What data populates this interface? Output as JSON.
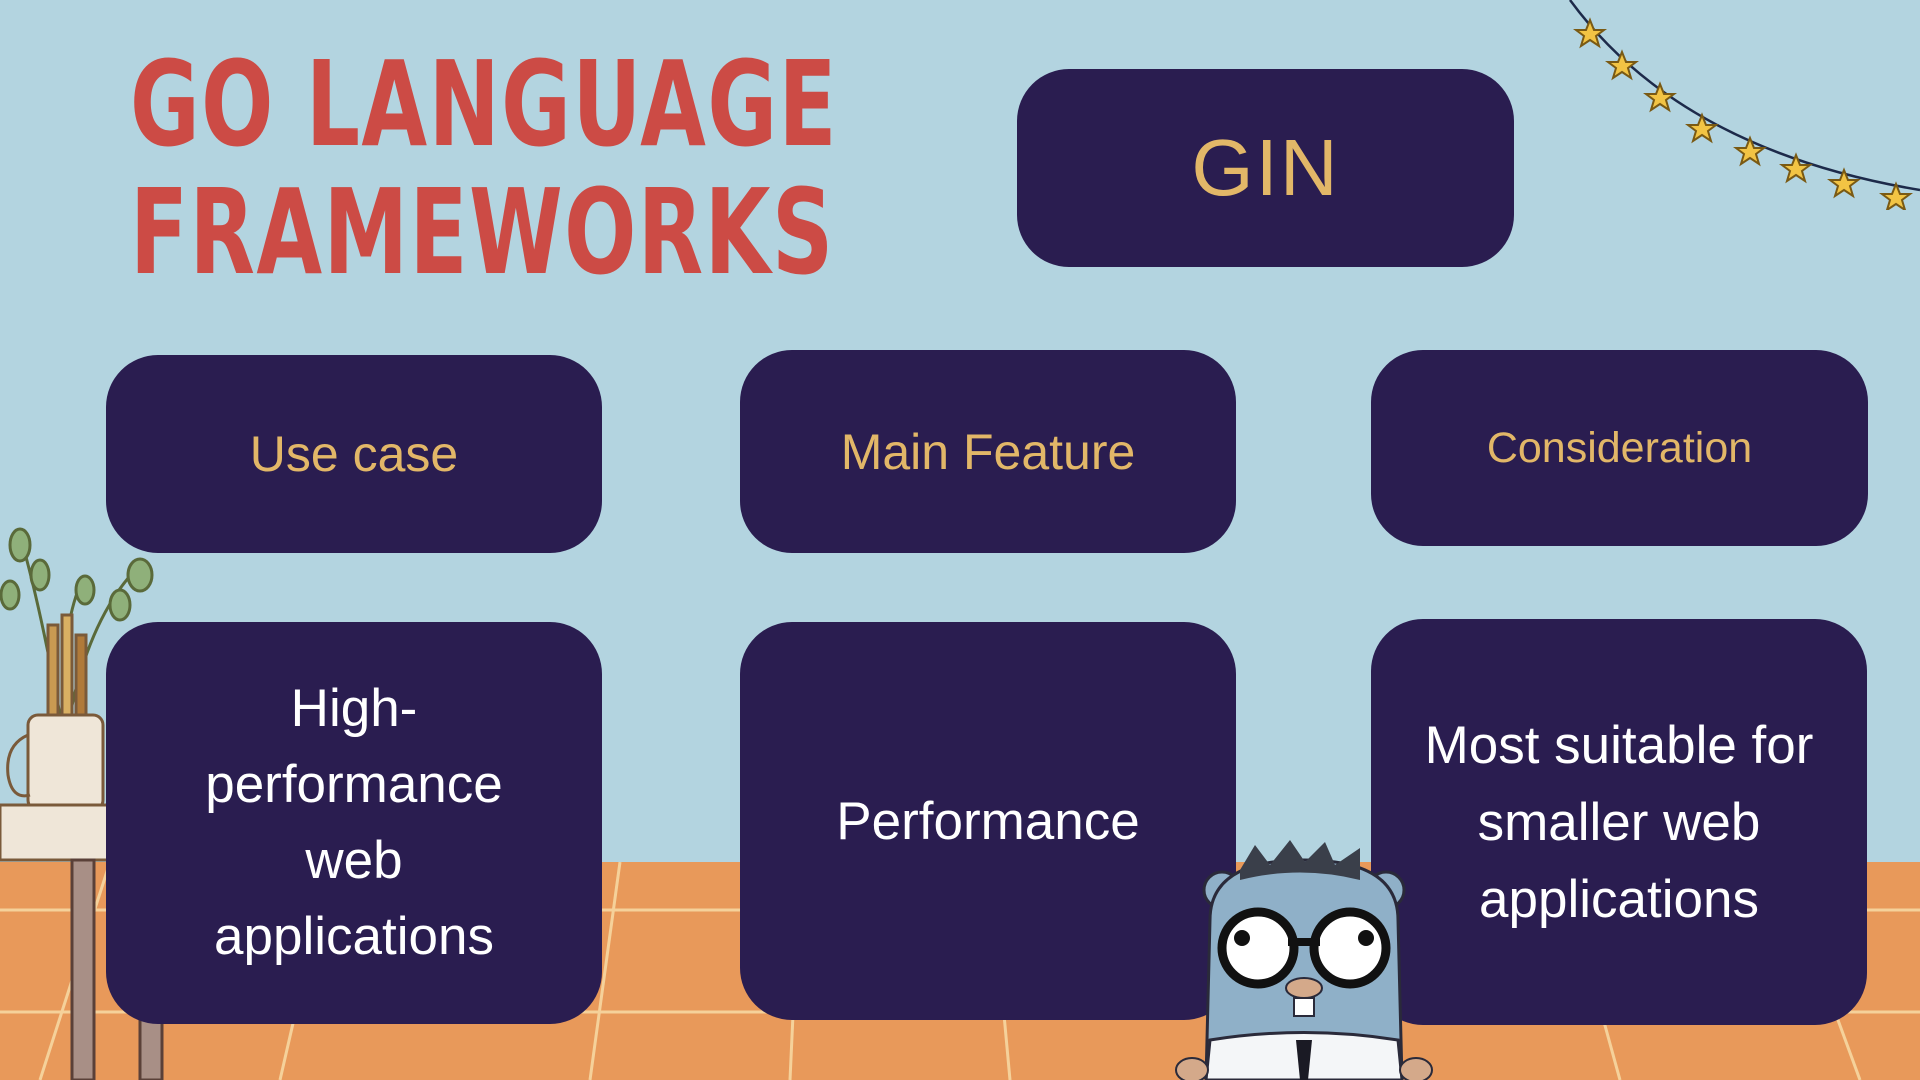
{
  "title": {
    "line1": "GO LANGUAGE",
    "line2": "FRAMEWORKS"
  },
  "framework": {
    "name": "GIN"
  },
  "headers": {
    "use_case": "Use case",
    "main_feature": "Main Feature",
    "consideration": "Consideration"
  },
  "values": {
    "use_case": "High-performance web applications",
    "main_feature": "Performance",
    "consideration": "Most suitable for smaller web applications"
  },
  "colors": {
    "background": "#b3d4e0",
    "floor": "#e8995a",
    "box": "#2a1d50",
    "title": "#cc4b45",
    "header_text": "#e2b768",
    "value_text": "#ffffff"
  },
  "icons": [
    "star-bunting-icon",
    "plant-pot-icon",
    "gopher-mascot-icon"
  ]
}
